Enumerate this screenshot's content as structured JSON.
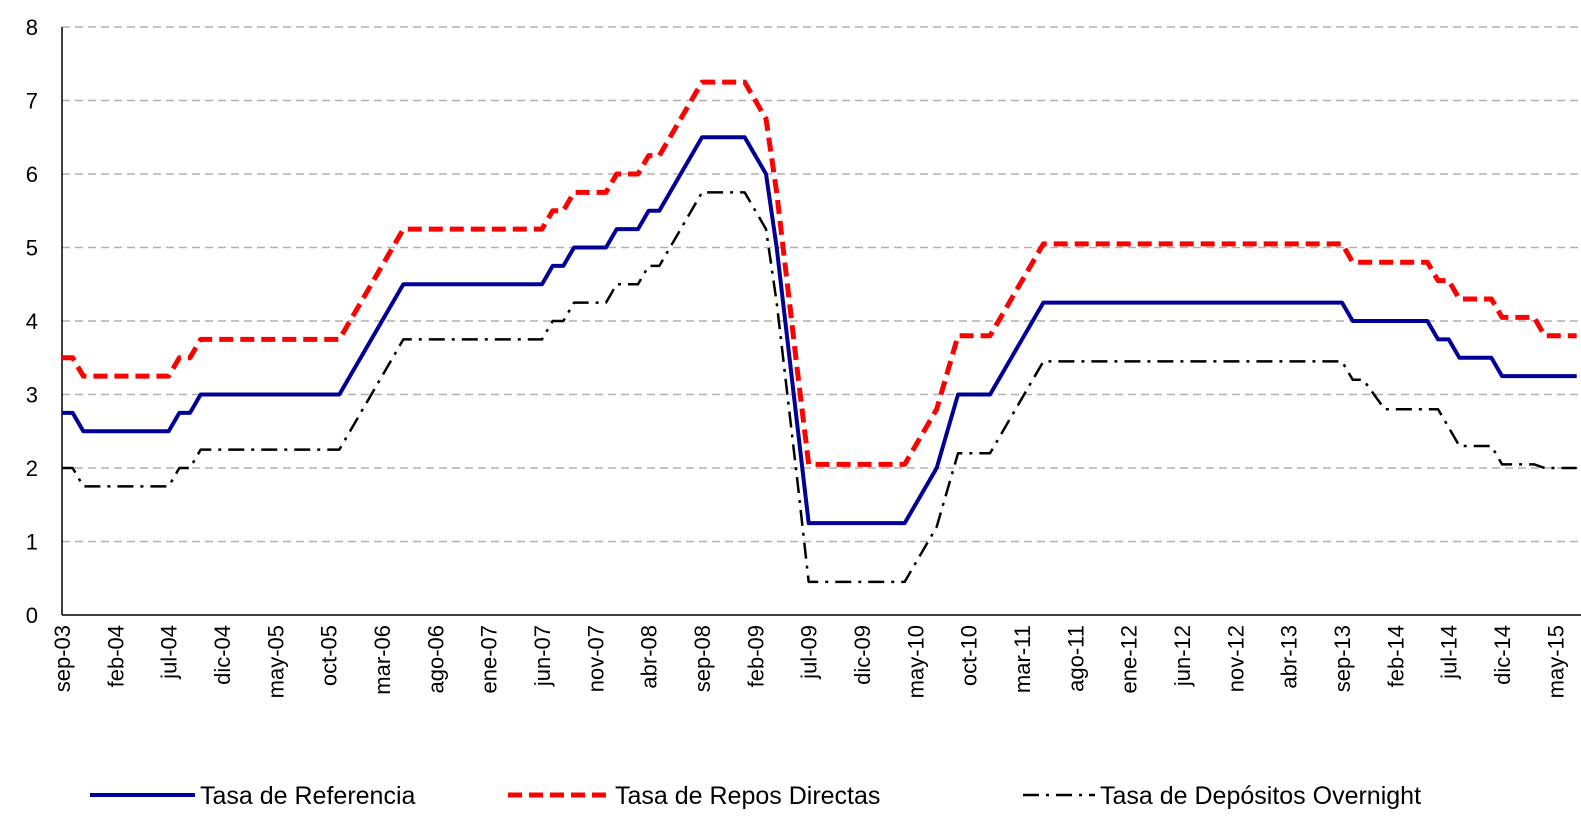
{
  "chart_data": {
    "type": "line",
    "categories": [
      "sep-03",
      null,
      null,
      null,
      null,
      "feb-04",
      null,
      null,
      null,
      null,
      "jul-04",
      null,
      null,
      null,
      null,
      "dic-04",
      null,
      null,
      null,
      null,
      "may-05",
      null,
      null,
      null,
      null,
      "oct-05",
      null,
      null,
      null,
      null,
      "mar-06",
      null,
      null,
      null,
      null,
      "ago-06",
      null,
      null,
      null,
      null,
      "ene-07",
      null,
      null,
      null,
      null,
      "jun-07",
      null,
      null,
      null,
      null,
      "nov-07",
      null,
      null,
      null,
      null,
      "abr-08",
      null,
      null,
      null,
      null,
      "sep-08",
      null,
      null,
      null,
      null,
      "feb-09",
      null,
      null,
      null,
      null,
      "jul-09",
      null,
      null,
      null,
      null,
      "dic-09",
      null,
      null,
      null,
      null,
      "may-10",
      null,
      null,
      null,
      null,
      "oct-10",
      null,
      null,
      null,
      null,
      "mar-11",
      null,
      null,
      null,
      null,
      "ago-11",
      null,
      null,
      null,
      null,
      "ene-12",
      null,
      null,
      null,
      null,
      "jun-12",
      null,
      null,
      null,
      null,
      "nov-12",
      null,
      null,
      null,
      null,
      "abr-13",
      null,
      null,
      null,
      null,
      "sep-13",
      null,
      null,
      null,
      null,
      "feb-14",
      null,
      null,
      null,
      null,
      "jul-14",
      null,
      null,
      null,
      null,
      "dic-14",
      null,
      null,
      null,
      null,
      "may-15",
      null,
      null
    ],
    "series": [
      {
        "name": "Tasa de Referencia",
        "color": "#000099",
        "dash": "solid",
        "values": [
          2.75,
          2.75,
          2.5,
          2.5,
          2.5,
          2.5,
          2.5,
          2.5,
          2.5,
          2.5,
          2.5,
          2.75,
          2.75,
          3.0,
          3.0,
          3.0,
          3.0,
          3.0,
          3.0,
          3.0,
          3.0,
          3.0,
          3.0,
          3.0,
          3.0,
          3.0,
          3.0,
          3.25,
          3.5,
          3.75,
          4.0,
          4.25,
          4.5,
          4.5,
          4.5,
          4.5,
          4.5,
          4.5,
          4.5,
          4.5,
          4.5,
          4.5,
          4.5,
          4.5,
          4.5,
          4.5,
          4.75,
          4.75,
          5.0,
          5.0,
          5.0,
          5.0,
          5.25,
          5.25,
          5.25,
          5.5,
          5.5,
          5.75,
          6.0,
          6.25,
          6.5,
          6.5,
          6.5,
          6.5,
          6.5,
          6.25,
          6.0,
          5.0,
          3.75,
          2.5,
          1.25,
          1.25,
          1.25,
          1.25,
          1.25,
          1.25,
          1.25,
          1.25,
          1.25,
          1.25,
          1.5,
          1.75,
          2.0,
          2.5,
          3.0,
          3.0,
          3.0,
          3.0,
          3.25,
          3.5,
          3.75,
          4.0,
          4.25,
          4.25,
          4.25,
          4.25,
          4.25,
          4.25,
          4.25,
          4.25,
          4.25,
          4.25,
          4.25,
          4.25,
          4.25,
          4.25,
          4.25,
          4.25,
          4.25,
          4.25,
          4.25,
          4.25,
          4.25,
          4.25,
          4.25,
          4.25,
          4.25,
          4.25,
          4.25,
          4.25,
          4.25,
          4.0,
          4.0,
          4.0,
          4.0,
          4.0,
          4.0,
          4.0,
          4.0,
          3.75,
          3.75,
          3.5,
          3.5,
          3.5,
          3.5,
          3.25,
          3.25,
          3.25,
          3.25,
          3.25,
          3.25,
          3.25,
          3.25
        ]
      },
      {
        "name": "Tasa de Repos Directas",
        "color": "#ff0000",
        "dash": "dashed",
        "values": [
          3.5,
          3.5,
          3.25,
          3.25,
          3.25,
          3.25,
          3.25,
          3.25,
          3.25,
          3.25,
          3.25,
          3.5,
          3.5,
          3.75,
          3.75,
          3.75,
          3.75,
          3.75,
          3.75,
          3.75,
          3.75,
          3.75,
          3.75,
          3.75,
          3.75,
          3.75,
          3.75,
          4.0,
          4.25,
          4.5,
          4.75,
          5.0,
          5.25,
          5.25,
          5.25,
          5.25,
          5.25,
          5.25,
          5.25,
          5.25,
          5.25,
          5.25,
          5.25,
          5.25,
          5.25,
          5.25,
          5.5,
          5.5,
          5.75,
          5.75,
          5.75,
          5.75,
          6.0,
          6.0,
          6.0,
          6.25,
          6.25,
          6.5,
          6.75,
          7.0,
          7.25,
          7.25,
          7.25,
          7.25,
          7.25,
          7.0,
          6.75,
          5.75,
          4.5,
          3.25,
          2.05,
          2.05,
          2.05,
          2.05,
          2.05,
          2.05,
          2.05,
          2.05,
          2.05,
          2.05,
          2.3,
          2.55,
          2.8,
          3.3,
          3.8,
          3.8,
          3.8,
          3.8,
          4.05,
          4.3,
          4.55,
          4.8,
          5.05,
          5.05,
          5.05,
          5.05,
          5.05,
          5.05,
          5.05,
          5.05,
          5.05,
          5.05,
          5.05,
          5.05,
          5.05,
          5.05,
          5.05,
          5.05,
          5.05,
          5.05,
          5.05,
          5.05,
          5.05,
          5.05,
          5.05,
          5.05,
          5.05,
          5.05,
          5.05,
          5.05,
          5.05,
          4.8,
          4.8,
          4.8,
          4.8,
          4.8,
          4.8,
          4.8,
          4.8,
          4.55,
          4.55,
          4.3,
          4.3,
          4.3,
          4.3,
          4.05,
          4.05,
          4.05,
          4.05,
          3.8,
          3.8,
          3.8,
          3.8
        ]
      },
      {
        "name": "Tasa de Depósitos Overnight",
        "color": "#000000",
        "dash": "dashdot",
        "values": [
          2.0,
          2.0,
          1.75,
          1.75,
          1.75,
          1.75,
          1.75,
          1.75,
          1.75,
          1.75,
          1.75,
          2.0,
          2.0,
          2.25,
          2.25,
          2.25,
          2.25,
          2.25,
          2.25,
          2.25,
          2.25,
          2.25,
          2.25,
          2.25,
          2.25,
          2.25,
          2.25,
          2.5,
          2.75,
          3.0,
          3.25,
          3.5,
          3.75,
          3.75,
          3.75,
          3.75,
          3.75,
          3.75,
          3.75,
          3.75,
          3.75,
          3.75,
          3.75,
          3.75,
          3.75,
          3.75,
          4.0,
          4.0,
          4.25,
          4.25,
          4.25,
          4.25,
          4.5,
          4.5,
          4.5,
          4.75,
          4.75,
          5.0,
          5.25,
          5.5,
          5.75,
          5.75,
          5.75,
          5.75,
          5.75,
          5.5,
          5.25,
          4.25,
          3.0,
          1.75,
          0.45,
          0.45,
          0.45,
          0.45,
          0.45,
          0.45,
          0.45,
          0.45,
          0.45,
          0.45,
          0.7,
          0.95,
          1.2,
          1.7,
          2.2,
          2.2,
          2.2,
          2.2,
          2.45,
          2.7,
          2.95,
          3.2,
          3.45,
          3.45,
          3.45,
          3.45,
          3.45,
          3.45,
          3.45,
          3.45,
          3.45,
          3.45,
          3.45,
          3.45,
          3.45,
          3.45,
          3.45,
          3.45,
          3.45,
          3.45,
          3.45,
          3.45,
          3.45,
          3.45,
          3.45,
          3.45,
          3.45,
          3.45,
          3.45,
          3.45,
          3.45,
          3.2,
          3.2,
          3.0,
          2.8,
          2.8,
          2.8,
          2.8,
          2.8,
          2.8,
          2.55,
          2.3,
          2.3,
          2.3,
          2.3,
          2.05,
          2.05,
          2.05,
          2.05,
          2.0,
          2.0,
          2.0,
          2.0
        ]
      }
    ],
    "ylim": [
      0,
      8
    ],
    "yticks": [
      0,
      1,
      2,
      3,
      4,
      5,
      6,
      7,
      8
    ],
    "grid": true,
    "legend": "bottom"
  }
}
